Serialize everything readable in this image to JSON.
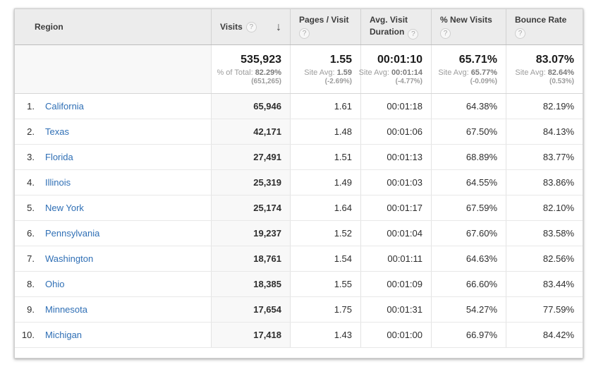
{
  "icons": {
    "help_glyph": "?",
    "sort_desc_glyph": "↓"
  },
  "colors": {
    "link_blue": "#2f6fb5",
    "header_bg": "#ececec",
    "sorted_column_bg": "#f8f8f8"
  },
  "table": {
    "columns": [
      {
        "label": "Region"
      },
      {
        "label": "Visits"
      },
      {
        "label": "Pages / Visit"
      },
      {
        "label": "Avg. Visit Duration"
      },
      {
        "label": "% New Visits"
      },
      {
        "label": "Bounce Rate"
      }
    ],
    "summary": {
      "visits": {
        "value": "535,923",
        "sub_label": "% of Total: ",
        "sub_value": "82.29%",
        "sub_paren": "(651,265)"
      },
      "pages_per_visit": {
        "value": "1.55",
        "sub_label": "Site Avg: ",
        "sub_value": "1.59",
        "sub_paren": "(-2.69%)"
      },
      "avg_duration": {
        "value": "00:01:10",
        "sub_label": "Site Avg: ",
        "sub_value": "00:01:14",
        "sub_paren": "(-4.77%)"
      },
      "new_visits": {
        "value": "65.71%",
        "sub_label": "Site Avg: ",
        "sub_value": "65.77%",
        "sub_paren": "(-0.09%)"
      },
      "bounce_rate": {
        "value": "83.07%",
        "sub_label": "Site Avg: ",
        "sub_value": "82.64%",
        "sub_paren": "(0.53%)"
      }
    },
    "rows": [
      {
        "rank": "1.",
        "region": "California",
        "visits": "65,946",
        "pages_per_visit": "1.61",
        "avg_duration": "00:01:18",
        "new_visits": "64.38%",
        "bounce_rate": "82.19%"
      },
      {
        "rank": "2.",
        "region": "Texas",
        "visits": "42,171",
        "pages_per_visit": "1.48",
        "avg_duration": "00:01:06",
        "new_visits": "67.50%",
        "bounce_rate": "84.13%"
      },
      {
        "rank": "3.",
        "region": "Florida",
        "visits": "27,491",
        "pages_per_visit": "1.51",
        "avg_duration": "00:01:13",
        "new_visits": "68.89%",
        "bounce_rate": "83.77%"
      },
      {
        "rank": "4.",
        "region": "Illinois",
        "visits": "25,319",
        "pages_per_visit": "1.49",
        "avg_duration": "00:01:03",
        "new_visits": "64.55%",
        "bounce_rate": "83.86%"
      },
      {
        "rank": "5.",
        "region": "New York",
        "visits": "25,174",
        "pages_per_visit": "1.64",
        "avg_duration": "00:01:17",
        "new_visits": "67.59%",
        "bounce_rate": "82.10%"
      },
      {
        "rank": "6.",
        "region": "Pennsylvania",
        "visits": "19,237",
        "pages_per_visit": "1.52",
        "avg_duration": "00:01:04",
        "new_visits": "67.60%",
        "bounce_rate": "83.58%"
      },
      {
        "rank": "7.",
        "region": "Washington",
        "visits": "18,761",
        "pages_per_visit": "1.54",
        "avg_duration": "00:01:11",
        "new_visits": "64.63%",
        "bounce_rate": "82.56%"
      },
      {
        "rank": "8.",
        "region": "Ohio",
        "visits": "18,385",
        "pages_per_visit": "1.55",
        "avg_duration": "00:01:09",
        "new_visits": "66.60%",
        "bounce_rate": "83.44%"
      },
      {
        "rank": "9.",
        "region": "Minnesota",
        "visits": "17,654",
        "pages_per_visit": "1.75",
        "avg_duration": "00:01:31",
        "new_visits": "54.27%",
        "bounce_rate": "77.59%"
      },
      {
        "rank": "10.",
        "region": "Michigan",
        "visits": "17,418",
        "pages_per_visit": "1.43",
        "avg_duration": "00:01:00",
        "new_visits": "66.97%",
        "bounce_rate": "84.42%"
      }
    ]
  }
}
